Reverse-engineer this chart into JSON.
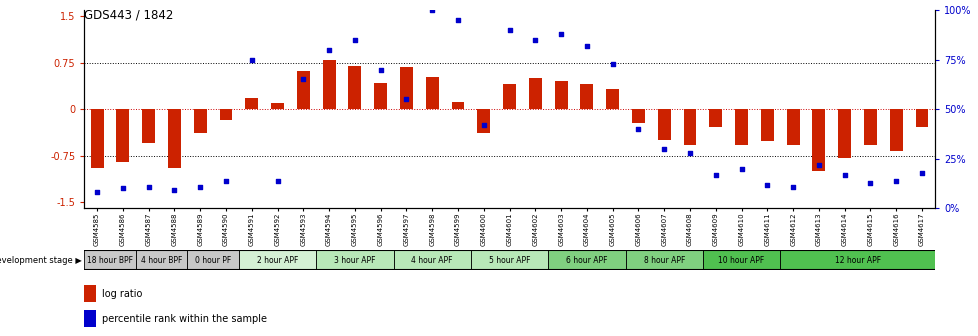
{
  "title": "GDS443 / 1842",
  "samples": [
    "GSM4585",
    "GSM4586",
    "GSM4587",
    "GSM4588",
    "GSM4589",
    "GSM4590",
    "GSM4591",
    "GSM4592",
    "GSM4593",
    "GSM4594",
    "GSM4595",
    "GSM4596",
    "GSM4597",
    "GSM4598",
    "GSM4599",
    "GSM4600",
    "GSM4601",
    "GSM4602",
    "GSM4603",
    "GSM4604",
    "GSM4605",
    "GSM4606",
    "GSM4607",
    "GSM4608",
    "GSM4609",
    "GSM4610",
    "GSM4611",
    "GSM4612",
    "GSM4613",
    "GSM4614",
    "GSM4615",
    "GSM4616",
    "GSM4617"
  ],
  "log_ratio": [
    -0.95,
    -0.85,
    -0.55,
    -0.95,
    -0.38,
    -0.18,
    0.18,
    0.1,
    0.62,
    0.8,
    0.7,
    0.42,
    0.68,
    0.52,
    0.12,
    -0.38,
    0.4,
    0.5,
    0.45,
    0.4,
    0.32,
    -0.22,
    -0.5,
    -0.58,
    -0.28,
    -0.58,
    -0.52,
    -0.58,
    -1.0,
    -0.78,
    -0.58,
    -0.68,
    -0.28
  ],
  "percentile": [
    8,
    10,
    11,
    9,
    11,
    14,
    75,
    14,
    65,
    80,
    85,
    70,
    55,
    100,
    95,
    42,
    90,
    85,
    88,
    82,
    73,
    40,
    30,
    28,
    17,
    20,
    12,
    11,
    22,
    17,
    13,
    14,
    18
  ],
  "stage_groups": [
    {
      "label": "18 hour BPF",
      "start": 0,
      "end": 2,
      "color": "#c8c8c8"
    },
    {
      "label": "4 hour BPF",
      "start": 2,
      "end": 4,
      "color": "#c8c8c8"
    },
    {
      "label": "0 hour PF",
      "start": 4,
      "end": 6,
      "color": "#c8c8c8"
    },
    {
      "label": "2 hour APF",
      "start": 6,
      "end": 9,
      "color": "#d4f0d4"
    },
    {
      "label": "3 hour APF",
      "start": 9,
      "end": 12,
      "color": "#b8e8b8"
    },
    {
      "label": "4 hour APF",
      "start": 12,
      "end": 15,
      "color": "#b8e8b8"
    },
    {
      "label": "5 hour APF",
      "start": 15,
      "end": 18,
      "color": "#b8e8b8"
    },
    {
      "label": "6 hour APF",
      "start": 18,
      "end": 21,
      "color": "#80d080"
    },
    {
      "label": "8 hour APF",
      "start": 21,
      "end": 24,
      "color": "#80d080"
    },
    {
      "label": "10 hour APF",
      "start": 24,
      "end": 27,
      "color": "#50c050"
    },
    {
      "label": "12 hour APF",
      "start": 27,
      "end": 33,
      "color": "#50c050"
    }
  ],
  "ylim": [
    -1.6,
    1.6
  ],
  "y2lim": [
    0,
    100
  ],
  "bar_color": "#cc2200",
  "dot_color": "#0000cc",
  "bar_width": 0.5,
  "dot_size": 12,
  "yticks_left": [
    -1.5,
    -0.75,
    0.0,
    0.75,
    1.5
  ],
  "yticks_right": [
    0,
    25,
    50,
    75,
    100
  ],
  "ytick_labels_left": [
    "-1.5",
    "-0.75",
    "0",
    "0.75",
    "1.5"
  ],
  "ytick_labels_right": [
    "0%",
    "25%",
    "50%",
    "75%",
    "100%"
  ],
  "hlines": [
    0.75,
    0.0,
    -0.75
  ],
  "hline_colors": [
    "black",
    "#cc0000",
    "black"
  ],
  "hline_styles": [
    ":",
    ":",
    ":"
  ]
}
